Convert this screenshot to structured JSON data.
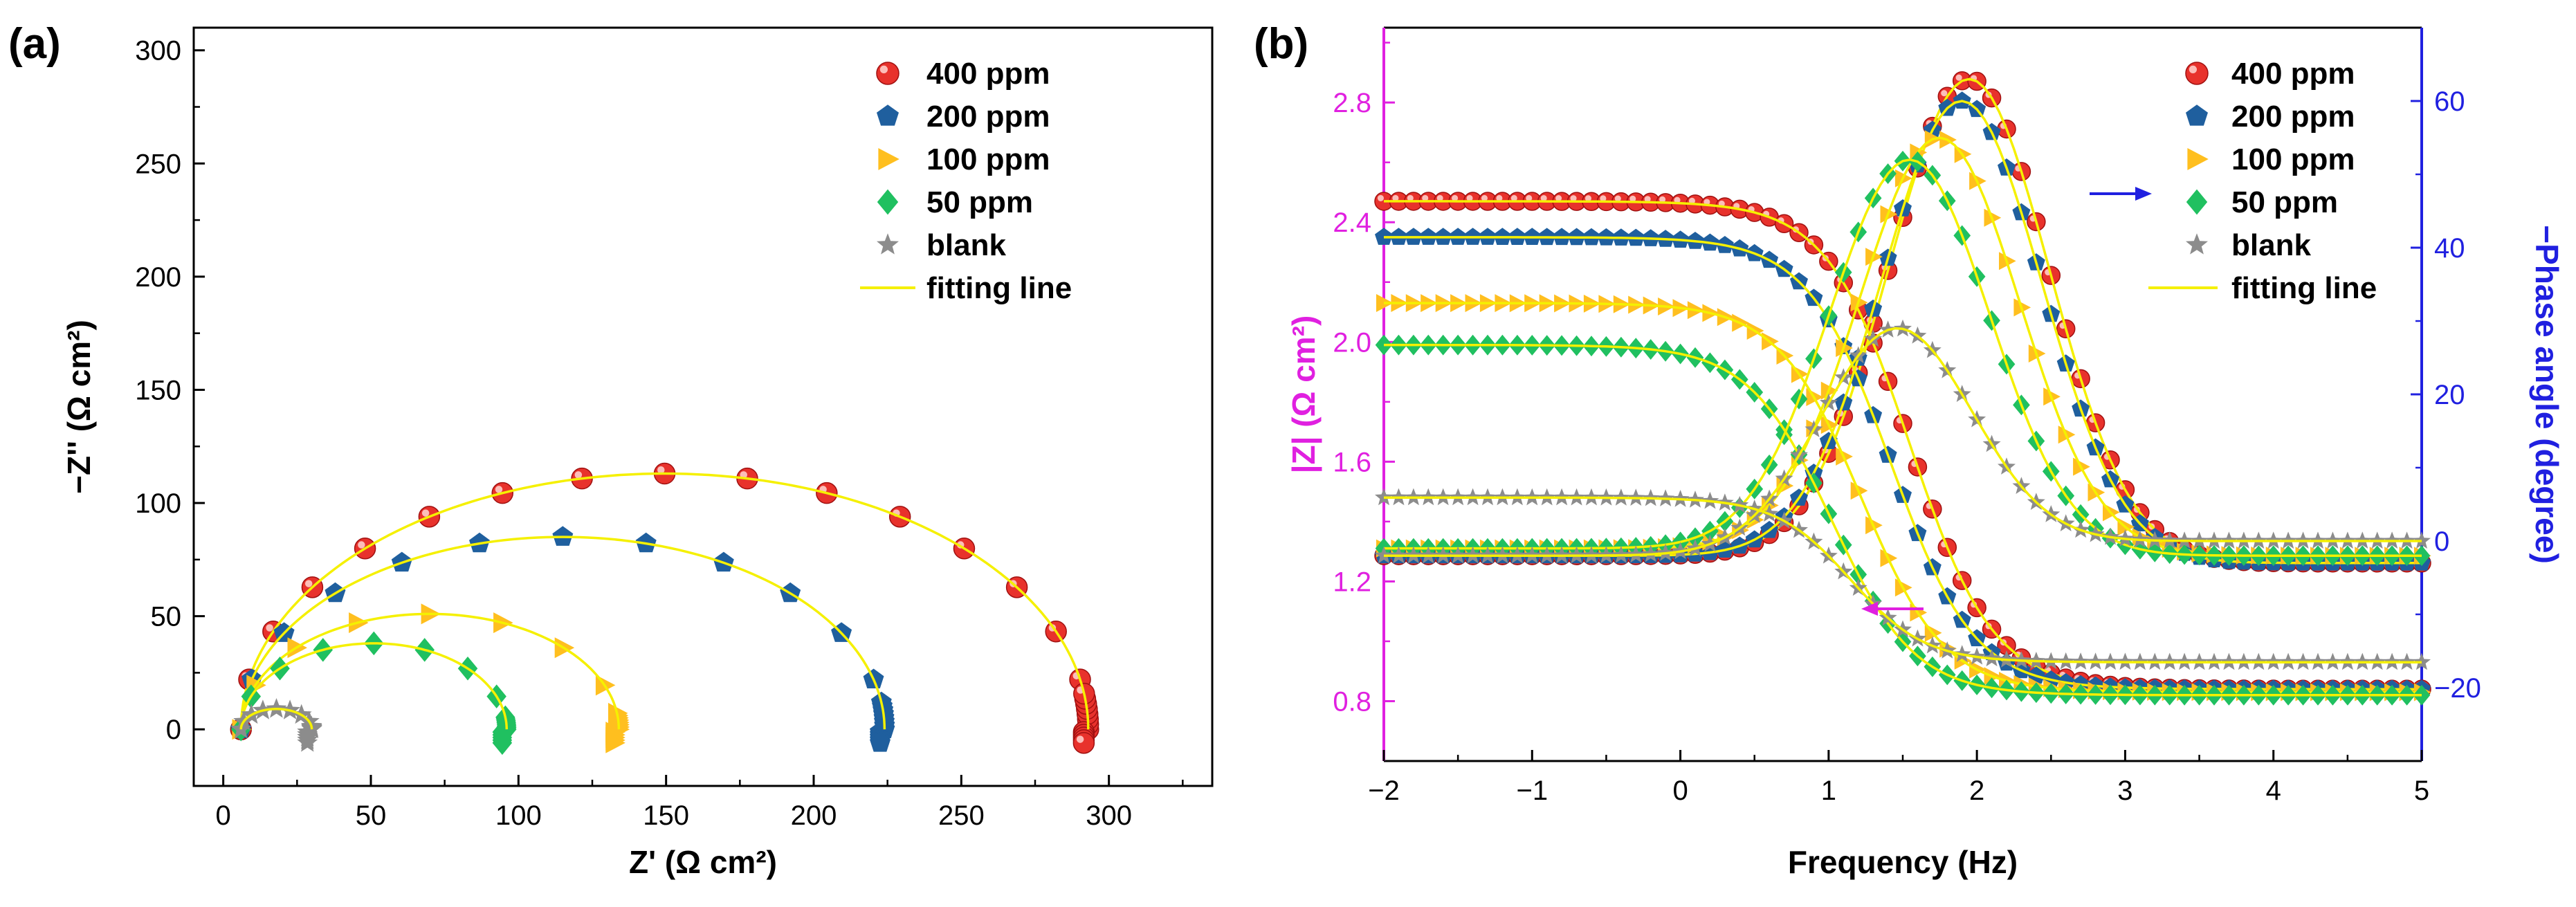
{
  "panels": {
    "a": {
      "label": "(a)"
    },
    "b": {
      "label": "(b)"
    }
  },
  "legend": {
    "entries": [
      "400 ppm",
      "200 ppm",
      "100 ppm",
      "50   ppm",
      "blank"
    ],
    "fit_label": "fitting line"
  },
  "colors": {
    "400 ppm": "#e8322c",
    "200 ppm": "#1f5f9e",
    "100 ppm": "#ffbf1f",
    "50 ppm": "#20c060",
    "blank": "#8c8c8c",
    "fit": "#f5f000",
    "phase_axis": "#2020e0",
    "impedance_axis": "#e020e0"
  },
  "chart_data": [
    {
      "type": "scatter",
      "title": "",
      "xlabel": "Z' (Ω cm²)",
      "ylabel": "−Z'' (Ω cm²)",
      "xlim": [
        -10,
        335
      ],
      "ylim": [
        -25,
        310
      ],
      "xticks": [
        0,
        50,
        100,
        150,
        200,
        250,
        300
      ],
      "yticks": [
        0,
        50,
        100,
        150,
        200,
        250,
        300
      ],
      "legend_position": "top-right",
      "series": [
        {
          "name": "400 ppm",
          "marker": "circle",
          "r0": 6,
          "r1": 293,
          "ymax": 113
        },
        {
          "name": "200 ppm",
          "marker": "pentagon",
          "r0": 6,
          "r1": 224,
          "ymax": 85
        },
        {
          "name": "100 ppm",
          "marker": "triangle-right",
          "r0": 6,
          "r1": 134,
          "ymax": 51
        },
        {
          "name": "50   ppm",
          "marker": "diamond",
          "r0": 6,
          "r1": 96,
          "ymax": 38
        },
        {
          "name": "blank",
          "marker": "star",
          "r0": 6,
          "r1": 30,
          "ymax": 9
        }
      ]
    },
    {
      "type": "scatter",
      "title": "",
      "xlabel": "Frequency (Hz)",
      "ylabel_left": "|Z| (Ω cm²)",
      "ylabel_right": "−Phase angle (degree)",
      "xlim": [
        -2,
        5
      ],
      "ylim_left": [
        0.6,
        3.05
      ],
      "ylim_right": [
        -30,
        70
      ],
      "xticks": [
        -2,
        -1,
        0,
        1,
        2,
        3,
        4,
        5
      ],
      "yticks_left": [
        0.8,
        1.2,
        1.6,
        2.0,
        2.4,
        2.8
      ],
      "yticks_right": [
        -20,
        0,
        20,
        40,
        60
      ],
      "legend_position": "top-right",
      "series": [
        {
          "name": "400 ppm",
          "marker": "circle",
          "logz_low": 2.47,
          "logz_high": 0.84,
          "logz_center": 1.55,
          "logz_width": 0.28,
          "phase_base": -2,
          "phase_peak": 63,
          "phase_center": 1.95,
          "phase_width": 0.58,
          "phase_end": -3
        },
        {
          "name": "200 ppm",
          "marker": "pentagon",
          "logz_low": 2.35,
          "logz_high": 0.84,
          "logz_center": 1.42,
          "logz_width": 0.28,
          "phase_base": -2,
          "phase_peak": 60,
          "phase_center": 1.9,
          "phase_width": 0.58,
          "phase_end": -3
        },
        {
          "name": "100 ppm",
          "marker": "triangle-right",
          "logz_low": 2.13,
          "logz_high": 0.83,
          "logz_center": 1.22,
          "logz_width": 0.28,
          "phase_base": -1,
          "phase_peak": 55,
          "phase_center": 1.75,
          "phase_width": 0.58,
          "phase_end": -2
        },
        {
          "name": "50   ppm",
          "marker": "diamond",
          "logz_low": 1.99,
          "logz_high": 0.82,
          "logz_center": 1.02,
          "logz_width": 0.28,
          "phase_base": -1,
          "phase_peak": 52,
          "phase_center": 1.55,
          "phase_width": 0.58,
          "phase_end": -2
        },
        {
          "name": "blank",
          "marker": "star",
          "logz_low": 1.48,
          "logz_high": 0.93,
          "logz_center": 1.15,
          "logz_width": 0.25,
          "phase_base": -2,
          "phase_peak": 29,
          "phase_center": 1.45,
          "phase_width": 0.55,
          "phase_end": 0
        }
      ]
    }
  ]
}
